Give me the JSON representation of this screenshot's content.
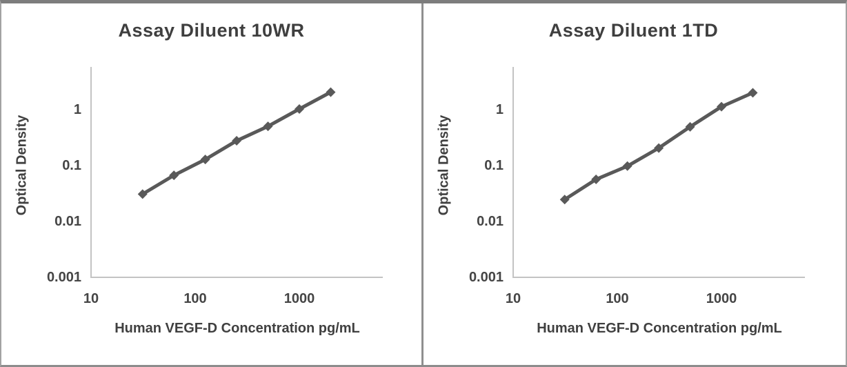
{
  "colors": {
    "line": "#595959",
    "marker": "#595959",
    "axis": "#c3c3c3",
    "text": "#404040",
    "border": "#8c8c8c",
    "background": "#ffffff"
  },
  "chart_data": [
    {
      "type": "line",
      "title": "Assay Diluent 10WR",
      "xlabel": "Human VEGF-D Concentration pg/mL",
      "ylabel": "Optical Density",
      "x_scale": "log",
      "y_scale": "log",
      "xlim": [
        10,
        6500
      ],
      "ylim": [
        0.001,
        5.5
      ],
      "grid": false,
      "legend": "none",
      "marker_shape": "diamond",
      "x": [
        31.25,
        62.5,
        125,
        250,
        500,
        1000,
        2000
      ],
      "series": [
        {
          "name": "Optical Density",
          "values": [
            0.03,
            0.065,
            0.125,
            0.27,
            0.49,
            1.0,
            2.0
          ]
        }
      ],
      "xticks": [
        {
          "value": 10,
          "label": "10"
        },
        {
          "value": 100,
          "label": "100"
        },
        {
          "value": 1000,
          "label": "1000"
        }
      ],
      "yticks": [
        {
          "value": 1,
          "label": "1"
        },
        {
          "value": 0.1,
          "label": "0.1"
        },
        {
          "value": 0.01,
          "label": "0.01"
        },
        {
          "value": 0.001,
          "label": "0.001"
        }
      ]
    },
    {
      "type": "line",
      "title": "Assay Diluent 1TD",
      "xlabel": "Human VEGF-D Concentration pg/mL",
      "ylabel": "Optical Density",
      "x_scale": "log",
      "y_scale": "log",
      "xlim": [
        10,
        6500
      ],
      "ylim": [
        0.001,
        5.5
      ],
      "grid": false,
      "legend": "none",
      "marker_shape": "diamond",
      "x": [
        31.25,
        62.5,
        125,
        250,
        500,
        1000,
        2000
      ],
      "series": [
        {
          "name": "Optical Density",
          "values": [
            0.024,
            0.055,
            0.095,
            0.2,
            0.48,
            1.1,
            1.95
          ]
        }
      ],
      "xticks": [
        {
          "value": 10,
          "label": "10"
        },
        {
          "value": 100,
          "label": "100"
        },
        {
          "value": 1000,
          "label": "1000"
        }
      ],
      "yticks": [
        {
          "value": 1,
          "label": "1"
        },
        {
          "value": 0.1,
          "label": "0.1"
        },
        {
          "value": 0.01,
          "label": "0.01"
        },
        {
          "value": 0.001,
          "label": "0.001"
        }
      ]
    }
  ]
}
